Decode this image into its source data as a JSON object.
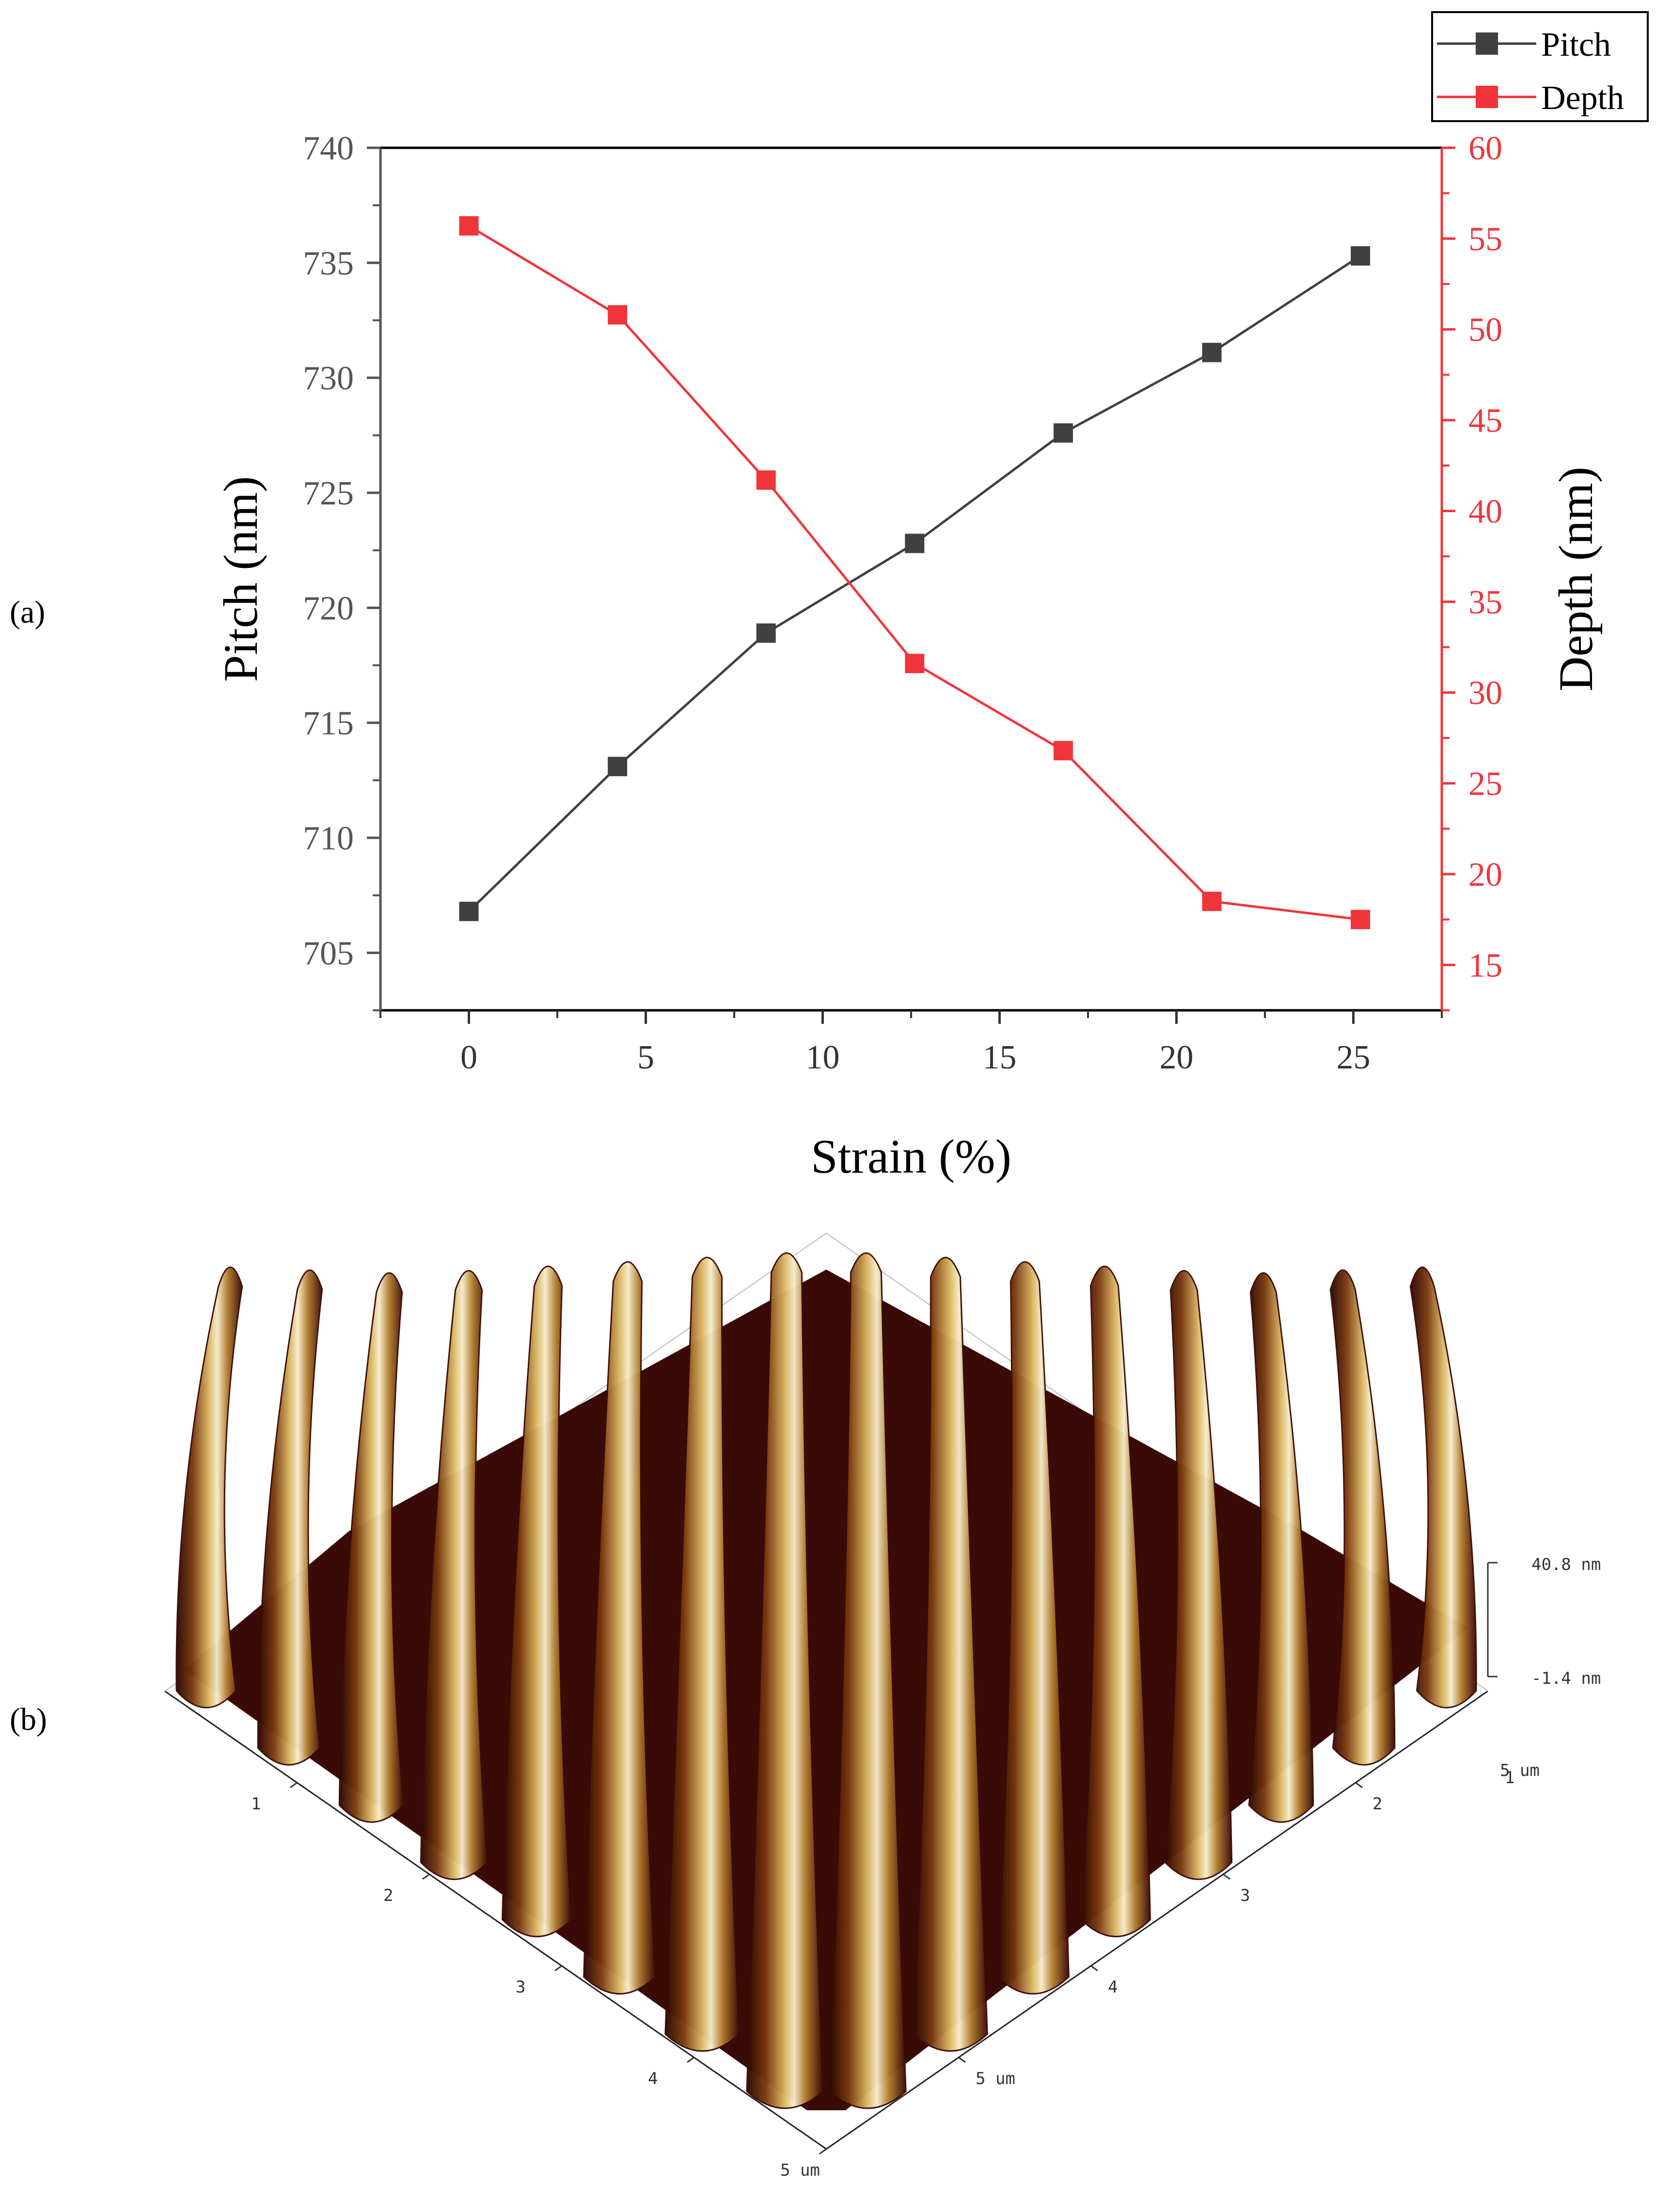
{
  "panels": {
    "a": "(a)",
    "b": "(b)"
  },
  "chart_data": [
    {
      "type": "line",
      "title": "",
      "xlabel": "Strain (%)",
      "ylabel": "Pitch (nm)",
      "y2label": "Depth (nm)",
      "x": [
        0,
        4.2,
        8.4,
        12.6,
        16.8,
        21.0,
        25.2
      ],
      "xlim": [
        -2.5,
        27.5
      ],
      "ylim": [
        702.5,
        740
      ],
      "y2lim": [
        12.5,
        60
      ],
      "xticks": [
        0,
        5,
        10,
        15,
        20,
        25
      ],
      "yticks": [
        705,
        710,
        715,
        720,
        725,
        730,
        735,
        740
      ],
      "y2ticks": [
        15,
        20,
        25,
        30,
        35,
        40,
        45,
        50,
        55,
        60
      ],
      "grid": false,
      "legend_position": "top-right-outside",
      "series": [
        {
          "name": "Pitch",
          "axis": "left",
          "color": "#404040",
          "values": [
            706.8,
            713.1,
            718.9,
            722.8,
            727.6,
            731.1,
            735.3
          ]
        },
        {
          "name": "Depth",
          "axis": "right",
          "color": "#f0353a",
          "values": [
            55.7,
            50.8,
            41.7,
            31.6,
            26.8,
            18.5,
            17.5
          ]
        }
      ]
    },
    {
      "type": "surface-3d",
      "title": "",
      "z_range_labels": [
        "40.8 nm",
        "-1.4 nm"
      ],
      "x_axis_ticks": [
        "1",
        "2",
        "3",
        "4",
        "5 um"
      ],
      "y_axis_ticks": [
        "1",
        "2",
        "3",
        "4",
        "5 um"
      ],
      "corner_label": "5 um",
      "ridge_count": 16,
      "colors": {
        "dark": "#3a0a06",
        "mid": "#8a4a12",
        "light": "#d9b45a",
        "highlight": "#f5ecc8"
      }
    }
  ]
}
